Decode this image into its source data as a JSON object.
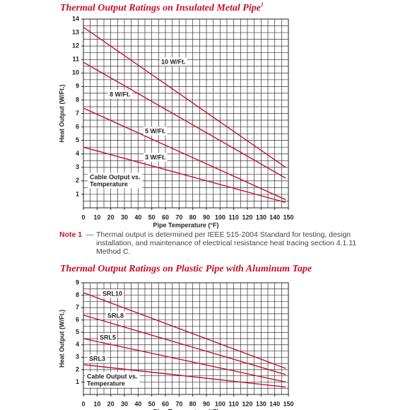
{
  "chart_data": [
    {
      "type": "line",
      "title": "Thermal Output Ratings on Insulated Metal Pipe",
      "title_superscript": "1",
      "x_label": "Pipe Temperature (°F)",
      "y_label": "Heat Output (W/Ft.)",
      "x": [
        0,
        148
      ],
      "series": [
        {
          "name": "10 W/Ft.",
          "color": "#c8102e",
          "values": [
            13.4,
            3.0
          ]
        },
        {
          "name": "8 W/Ft.",
          "color": "#c8102e",
          "values": [
            10.8,
            2.2
          ]
        },
        {
          "name": "5 W/Ft.",
          "color": "#c8102e",
          "values": [
            7.4,
            0.6
          ]
        },
        {
          "name": "3 W/Ft.",
          "color": "#c8102e",
          "values": [
            4.5,
            0.4
          ]
        }
      ],
      "annotation": [
        "Cable Output vs.",
        "Temperature"
      ],
      "xlim": [
        0,
        150
      ],
      "xticks": [
        0,
        10,
        20,
        30,
        40,
        50,
        60,
        70,
        80,
        90,
        100,
        110,
        120,
        130,
        140,
        150
      ],
      "ylim": [
        0,
        14
      ],
      "yticks": [
        1,
        2,
        3,
        4,
        5,
        6,
        7,
        8,
        9,
        10,
        11,
        12,
        13,
        14
      ],
      "grid": true,
      "xgrid": [
        0,
        5,
        10,
        15,
        20,
        25,
        30,
        35,
        40,
        45,
        50,
        55,
        60,
        65,
        70,
        75,
        80,
        85,
        90,
        95,
        100,
        105,
        110,
        115,
        120,
        125,
        130,
        135,
        140,
        145,
        150
      ],
      "ygrid": [
        0,
        0.5,
        1,
        1.5,
        2,
        2.5,
        3,
        3.5,
        4,
        4.5,
        5,
        5.5,
        6,
        6.5,
        7,
        7.5,
        8,
        8.5,
        9,
        9.5,
        10,
        10.5,
        11,
        11.5,
        12,
        12.5,
        13,
        13.5,
        14
      ]
    },
    {
      "type": "line",
      "title": "Thermal Output Ratings on Plastic Pipe with Aluminum Tape",
      "x_label": "Pipe Temperature (°F)",
      "y_label": "Heat Output (W/Ft.)",
      "x": [
        0,
        148
      ],
      "series": [
        {
          "name": "SRL10",
          "color": "#c8102e",
          "values": [
            8.2,
            2.1
          ]
        },
        {
          "name": "SRL8",
          "color": "#c8102e",
          "values": [
            6.4,
            1.6
          ]
        },
        {
          "name": "SRL5",
          "color": "#c8102e",
          "values": [
            4.5,
            1.0
          ]
        },
        {
          "name": "SRL3",
          "color": "#c8102e",
          "values": [
            2.4,
            0.6
          ]
        }
      ],
      "annotation": [
        "Cable Output vs.",
        "Temperature"
      ],
      "xlim": [
        0,
        150
      ],
      "xticks": [
        0,
        10,
        20,
        30,
        40,
        50,
        60,
        70,
        80,
        90,
        100,
        110,
        120,
        130,
        140,
        150
      ],
      "ylim": [
        0,
        9
      ],
      "yticks": [
        1,
        2,
        3,
        4,
        5,
        6,
        7,
        8,
        9
      ],
      "grid": true,
      "xgrid": [
        0,
        5,
        10,
        15,
        20,
        25,
        30,
        35,
        40,
        45,
        50,
        55,
        60,
        65,
        70,
        75,
        80,
        85,
        90,
        95,
        100,
        105,
        110,
        115,
        120,
        125,
        130,
        135,
        140,
        145,
        150
      ],
      "ygrid": [
        0,
        0.5,
        1,
        1.5,
        2,
        2.5,
        3,
        3.5,
        4,
        4.5,
        5,
        5.5,
        6,
        6.5,
        7,
        7.5,
        8,
        8.5,
        9
      ]
    }
  ],
  "note": {
    "label": "Note 1",
    "dash": "—",
    "text": "Thermal output is determined per IEEE 515-2004 Standard for testing, design installation, and maintenance of electrical resistance heat tracing section 4.1.11 Method C."
  }
}
